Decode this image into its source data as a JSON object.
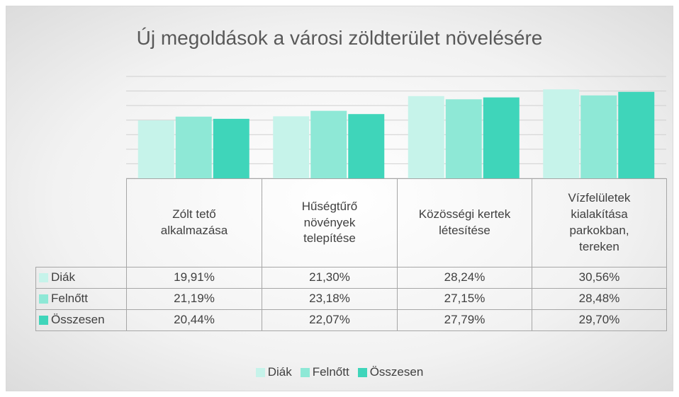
{
  "chart_data": {
    "type": "bar",
    "title": "Új megoldások a városi zöldterület növelésére",
    "categories": [
      "Zólt tető alkalmazása",
      "Hűségtűrő növények telepítése",
      "Közösségi kertek létesítése",
      "Vízfelületek kialakítása parkokban, tereken"
    ],
    "series": [
      {
        "name": "Diák",
        "color": "#c6f3ea",
        "values": [
          19.91,
          21.3,
          28.24,
          30.56
        ],
        "value_labels": [
          "19,91%",
          "21,30%",
          "28,24%",
          "30,56%"
        ]
      },
      {
        "name": "Felnőtt",
        "color": "#8ee8d6",
        "values": [
          21.19,
          23.18,
          27.15,
          28.48
        ],
        "value_labels": [
          "21,19%",
          "23,18%",
          "27,15%",
          "28,48%"
        ]
      },
      {
        "name": "Összesen",
        "color": "#3fd5ba",
        "values": [
          20.44,
          22.07,
          27.79,
          29.7
        ],
        "value_labels": [
          "20,44%",
          "22,07%",
          "27,79%",
          "29,70%"
        ]
      }
    ],
    "ylim": [
      0,
      35
    ],
    "yticks": [
      0,
      5,
      10,
      15,
      20,
      25,
      30,
      35
    ],
    "grid": true,
    "legend": "bottom"
  }
}
